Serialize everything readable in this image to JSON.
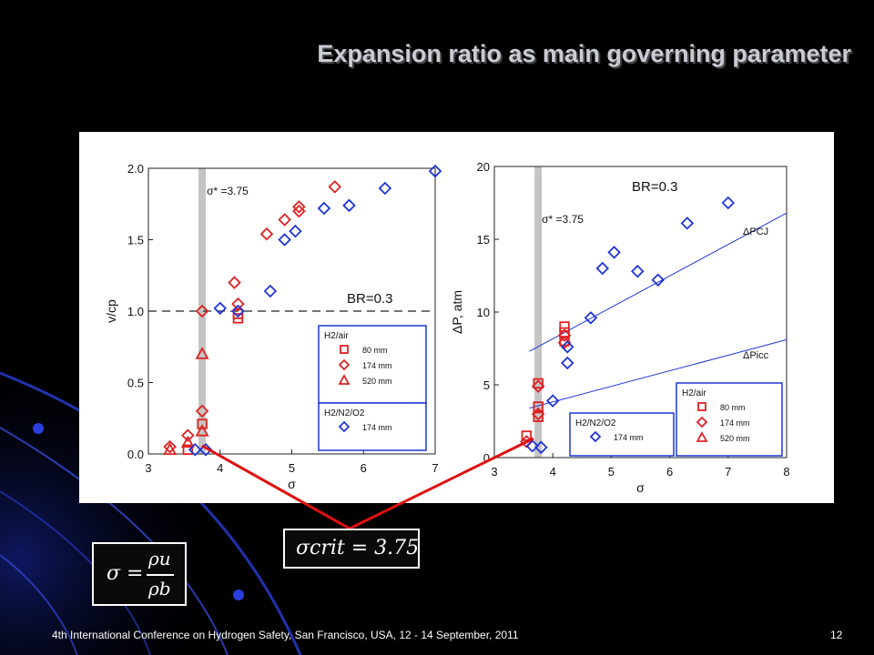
{
  "slide": {
    "title": "Expansion ratio as main governing parameter",
    "footer": "4th International Conference on Hydrogen Safety, San Francisco, USA, 12 - 14 September, 2011",
    "page_number": "12",
    "formula_sigma_def": {
      "lhs": "σ",
      "eq": "=",
      "num": "ρu",
      "den": "ρb"
    },
    "formula_sigma_crit": "σcrit = 3.75"
  },
  "chart_data": [
    {
      "type": "scatter",
      "xlabel": "σ",
      "ylabel": "v/cp",
      "xlim": [
        3,
        7
      ],
      "ylim": [
        0,
        2.0
      ],
      "xticks": [
        "3",
        "4",
        "5",
        "6",
        "7"
      ],
      "yticks": [
        "0.0",
        "0.5",
        "1.0",
        "1.5",
        "2.0"
      ],
      "annotations": {
        "sigma_star": "σ* =3.75",
        "br": "BR=0.3"
      },
      "sigma_star_value": 3.75,
      "reference_line_y": 1.0,
      "legend": {
        "placement": "bottom-right",
        "group1": {
          "title": "H2/air",
          "entries": [
            "80 mm",
            "174 mm",
            "520 mm"
          ]
        },
        "group2": {
          "title": "H2/N2/O2",
          "entries": [
            "174 mm"
          ]
        }
      },
      "series": [
        {
          "name": "H2/air 80 mm",
          "marker": "square",
          "color": "#e02020",
          "points": [
            [
              3.55,
              0.03
            ],
            [
              3.75,
              0.21
            ],
            [
              4.25,
              0.95
            ],
            [
              4.25,
              0.98
            ]
          ]
        },
        {
          "name": "H2/air 174 mm",
          "marker": "diamond",
          "color": "#e02020",
          "points": [
            [
              3.3,
              0.05
            ],
            [
              3.55,
              0.13
            ],
            [
              3.75,
              0.3
            ],
            [
              3.75,
              1.0
            ],
            [
              4.2,
              1.2
            ],
            [
              4.25,
              1.05
            ],
            [
              4.65,
              1.54
            ],
            [
              4.9,
              1.64
            ],
            [
              5.1,
              1.7
            ],
            [
              5.1,
              1.73
            ],
            [
              5.6,
              1.87
            ]
          ]
        },
        {
          "name": "H2/air 520 mm",
          "marker": "triangle",
          "color": "#e02020",
          "points": [
            [
              3.3,
              0.03
            ],
            [
              3.55,
              0.08
            ],
            [
              3.75,
              0.16
            ],
            [
              3.75,
              0.7
            ]
          ]
        },
        {
          "name": "H2/N2/O2 174 mm",
          "marker": "diamond",
          "color": "#1f35d6",
          "points": [
            [
              3.65,
              0.03
            ],
            [
              3.8,
              0.03
            ],
            [
              4.0,
              1.02
            ],
            [
              4.25,
              1.0
            ],
            [
              4.7,
              1.14
            ],
            [
              4.9,
              1.5
            ],
            [
              5.05,
              1.56
            ],
            [
              5.45,
              1.72
            ],
            [
              5.8,
              1.74
            ],
            [
              6.3,
              1.86
            ],
            [
              7.0,
              1.98
            ]
          ]
        }
      ]
    },
    {
      "type": "scatter",
      "xlabel": "σ",
      "ylabel": "ΔP, atm",
      "xlim": [
        3,
        8
      ],
      "ylim": [
        0,
        20
      ],
      "xticks": [
        "3",
        "4",
        "5",
        "6",
        "7",
        "8"
      ],
      "yticks": [
        "0",
        "5",
        "10",
        "15",
        "20"
      ],
      "annotations": {
        "sigma_star": "σ* =3.75",
        "br": "BR=0.3",
        "line1": "ΔPCJ",
        "line2": "ΔPicc"
      },
      "sigma_star_value": 3.75,
      "lines": [
        {
          "name": "ΔPCJ",
          "color": "#1f35d6",
          "from": [
            3.6,
            7.3
          ],
          "to": [
            8.0,
            16.8
          ]
        },
        {
          "name": "ΔPicc",
          "color": "#1f35d6",
          "from": [
            3.6,
            3.4
          ],
          "to": [
            8.0,
            8.1
          ]
        }
      ],
      "legend": {
        "placement": "bottom-right",
        "group1": {
          "title": "H2/air",
          "entries": [
            "80 mm",
            "174 mm",
            "520 mm"
          ]
        },
        "group2": {
          "title": "H2/N2/O2",
          "entries": [
            "174 mm"
          ]
        }
      },
      "series": [
        {
          "name": "H2/air 80 mm",
          "marker": "square",
          "color": "#e02020",
          "points": [
            [
              3.55,
              1.5
            ],
            [
              3.75,
              2.8
            ],
            [
              3.75,
              3.5
            ],
            [
              3.75,
              5.1
            ],
            [
              4.2,
              8.0
            ],
            [
              4.2,
              8.6
            ],
            [
              4.2,
              9.0
            ]
          ]
        },
        {
          "name": "H2/air 174 mm",
          "marker": "diamond",
          "color": "#e02020",
          "points": [
            [
              3.55,
              1.1
            ],
            [
              3.75,
              3.0
            ],
            [
              3.75,
              4.9
            ],
            [
              4.2,
              7.9
            ],
            [
              4.2,
              8.4
            ]
          ]
        },
        {
          "name": "H2/N2/O2 174 mm",
          "marker": "diamond",
          "color": "#1f35d6",
          "points": [
            [
              3.65,
              0.8
            ],
            [
              3.8,
              0.7
            ],
            [
              4.0,
              3.9
            ],
            [
              4.25,
              6.5
            ],
            [
              4.25,
              7.6
            ],
            [
              4.65,
              9.6
            ],
            [
              4.85,
              13.0
            ],
            [
              5.05,
              14.1
            ],
            [
              5.45,
              12.8
            ],
            [
              5.8,
              12.2
            ],
            [
              6.3,
              16.1
            ],
            [
              7.0,
              17.5
            ]
          ]
        }
      ]
    }
  ]
}
